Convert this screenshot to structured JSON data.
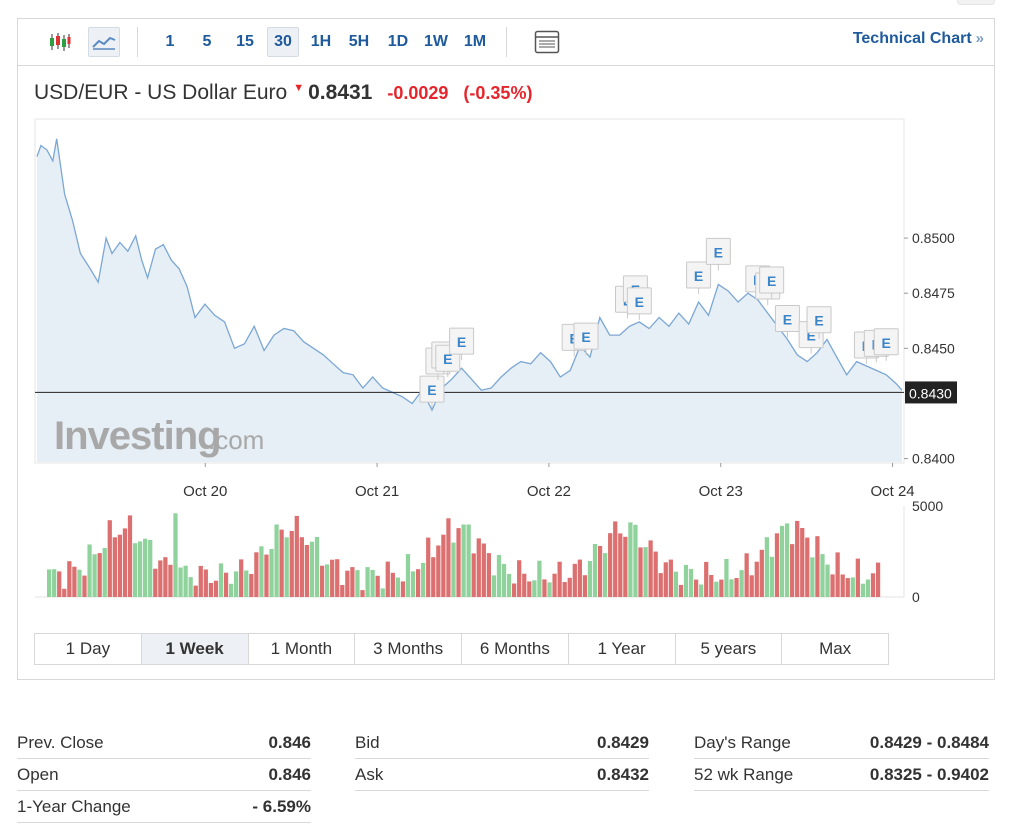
{
  "toolbar": {
    "intervals": [
      "1",
      "5",
      "15",
      "30",
      "1H",
      "5H",
      "1D",
      "1W",
      "1M"
    ],
    "active_interval": "30",
    "technical_chart_label": "Technical Chart",
    "technical_chart_arrow": "»"
  },
  "quote": {
    "name": "USD/EUR - US Dollar Euro",
    "price": "0.8431",
    "change": "-0.0029",
    "change_pct": "(-0.35%)",
    "direction": "down"
  },
  "watermark": {
    "brand": "Investing",
    "suffix": ".com"
  },
  "colors": {
    "accent": "#1e5a9c",
    "negative": "#e5252c",
    "line": "#7ba7d4",
    "area": "#e6eef6",
    "vol_up": "#8fd29c",
    "vol_down": "#dc6f6f"
  },
  "chart_data": {
    "type": "area",
    "x_ticks": [
      "Oct 20",
      "Oct 21",
      "Oct 22",
      "Oct 23",
      "Oct 24"
    ],
    "y_ticks": [
      "0.8500",
      "0.8475",
      "0.8450",
      "0.8400"
    ],
    "ylim": [
      0.84,
      0.855
    ],
    "current_value_label": "0.8430",
    "current_value": 0.843,
    "event_marker_label": "E",
    "volume_ticks": [
      "5000",
      "0"
    ],
    "volume_ylim": [
      0,
      5000
    ],
    "price_series": [
      [
        0,
        0.8537
      ],
      [
        0.02,
        0.8542
      ],
      [
        0.05,
        0.854
      ],
      [
        0.08,
        0.8535
      ],
      [
        0.1,
        0.8545
      ],
      [
        0.14,
        0.852
      ],
      [
        0.18,
        0.8508
      ],
      [
        0.22,
        0.8493
      ],
      [
        0.27,
        0.8486
      ],
      [
        0.31,
        0.848
      ],
      [
        0.35,
        0.85
      ],
      [
        0.38,
        0.8493
      ],
      [
        0.42,
        0.8498
      ],
      [
        0.46,
        0.8494
      ],
      [
        0.5,
        0.8501
      ],
      [
        0.53,
        0.849
      ],
      [
        0.56,
        0.8482
      ],
      [
        0.6,
        0.8495
      ],
      [
        0.64,
        0.8497
      ],
      [
        0.68,
        0.849
      ],
      [
        0.72,
        0.8486
      ],
      [
        0.76,
        0.8478
      ],
      [
        0.8,
        0.8464
      ],
      [
        0.85,
        0.847
      ],
      [
        0.9,
        0.8465
      ],
      [
        0.95,
        0.8462
      ],
      [
        1.0,
        0.845
      ],
      [
        1.05,
        0.8452
      ],
      [
        1.1,
        0.846
      ],
      [
        1.15,
        0.8449
      ],
      [
        1.2,
        0.8456
      ],
      [
        1.25,
        0.8459
      ],
      [
        1.3,
        0.8458
      ],
      [
        1.35,
        0.8453
      ],
      [
        1.4,
        0.845
      ],
      [
        1.45,
        0.8447
      ],
      [
        1.5,
        0.8443
      ],
      [
        1.55,
        0.8439
      ],
      [
        1.6,
        0.8438
      ],
      [
        1.65,
        0.8432
      ],
      [
        1.7,
        0.8437
      ],
      [
        1.75,
        0.8432
      ],
      [
        1.8,
        0.843
      ],
      [
        1.85,
        0.8428
      ],
      [
        1.9,
        0.8425
      ],
      [
        1.95,
        0.8431
      ],
      [
        2.0,
        0.8422
      ],
      [
        2.05,
        0.8432
      ],
      [
        2.1,
        0.8436
      ],
      [
        2.15,
        0.8441
      ],
      [
        2.2,
        0.8436
      ],
      [
        2.25,
        0.8431
      ],
      [
        2.3,
        0.8432
      ],
      [
        2.35,
        0.8437
      ],
      [
        2.4,
        0.8441
      ],
      [
        2.45,
        0.8444
      ],
      [
        2.5,
        0.8443
      ],
      [
        2.55,
        0.8448
      ],
      [
        2.6,
        0.8444
      ],
      [
        2.65,
        0.8437
      ],
      [
        2.7,
        0.844
      ],
      [
        2.75,
        0.8451
      ],
      [
        2.8,
        0.8446
      ],
      [
        2.85,
        0.8464
      ],
      [
        2.9,
        0.8456
      ],
      [
        2.95,
        0.8456
      ],
      [
        3.0,
        0.846
      ],
      [
        3.05,
        0.8462
      ],
      [
        3.1,
        0.8459
      ],
      [
        3.15,
        0.8464
      ],
      [
        3.2,
        0.846
      ],
      [
        3.25,
        0.8466
      ],
      [
        3.3,
        0.8461
      ],
      [
        3.35,
        0.8471
      ],
      [
        3.4,
        0.8465
      ],
      [
        3.45,
        0.8479
      ],
      [
        3.5,
        0.8476
      ],
      [
        3.55,
        0.8471
      ],
      [
        3.6,
        0.8475
      ],
      [
        3.65,
        0.8472
      ],
      [
        3.7,
        0.8466
      ],
      [
        3.75,
        0.846
      ],
      [
        3.8,
        0.8454
      ],
      [
        3.85,
        0.8447
      ],
      [
        3.9,
        0.8444
      ],
      [
        3.95,
        0.8448
      ],
      [
        4.0,
        0.8454
      ],
      [
        4.05,
        0.8446
      ],
      [
        4.1,
        0.8438
      ],
      [
        4.15,
        0.8444
      ],
      [
        4.2,
        0.8442
      ],
      [
        4.25,
        0.844
      ],
      [
        4.3,
        0.8438
      ],
      [
        4.35,
        0.8434
      ],
      [
        4.38,
        0.8431
      ]
    ],
    "events": [
      2.0,
      2.03,
      2.06,
      2.08,
      2.15,
      2.72,
      2.78,
      2.99,
      3.03,
      3.05,
      3.35,
      3.45,
      3.65,
      3.7,
      3.72,
      3.8,
      3.92,
      3.96,
      4.2,
      4.25,
      4.3
    ]
  },
  "ranges": [
    "1 Day",
    "1 Week",
    "1 Month",
    "3 Months",
    "6 Months",
    "1 Year",
    "5 years",
    "Max"
  ],
  "active_range": "1 Week",
  "stats": {
    "col1": [
      {
        "label": "Prev. Close",
        "value": "0.846"
      },
      {
        "label": "Open",
        "value": "0.846"
      },
      {
        "label": "1-Year Change",
        "value": "- 6.59%"
      }
    ],
    "col2": [
      {
        "label": "Bid",
        "value": "0.8429"
      },
      {
        "label": "Ask",
        "value": "0.8432"
      }
    ],
    "col3": [
      {
        "label": "Day's Range",
        "value": "0.8429 - 0.8484"
      },
      {
        "label": "52 wk Range",
        "value": "0.8325 - 0.9402"
      }
    ]
  }
}
